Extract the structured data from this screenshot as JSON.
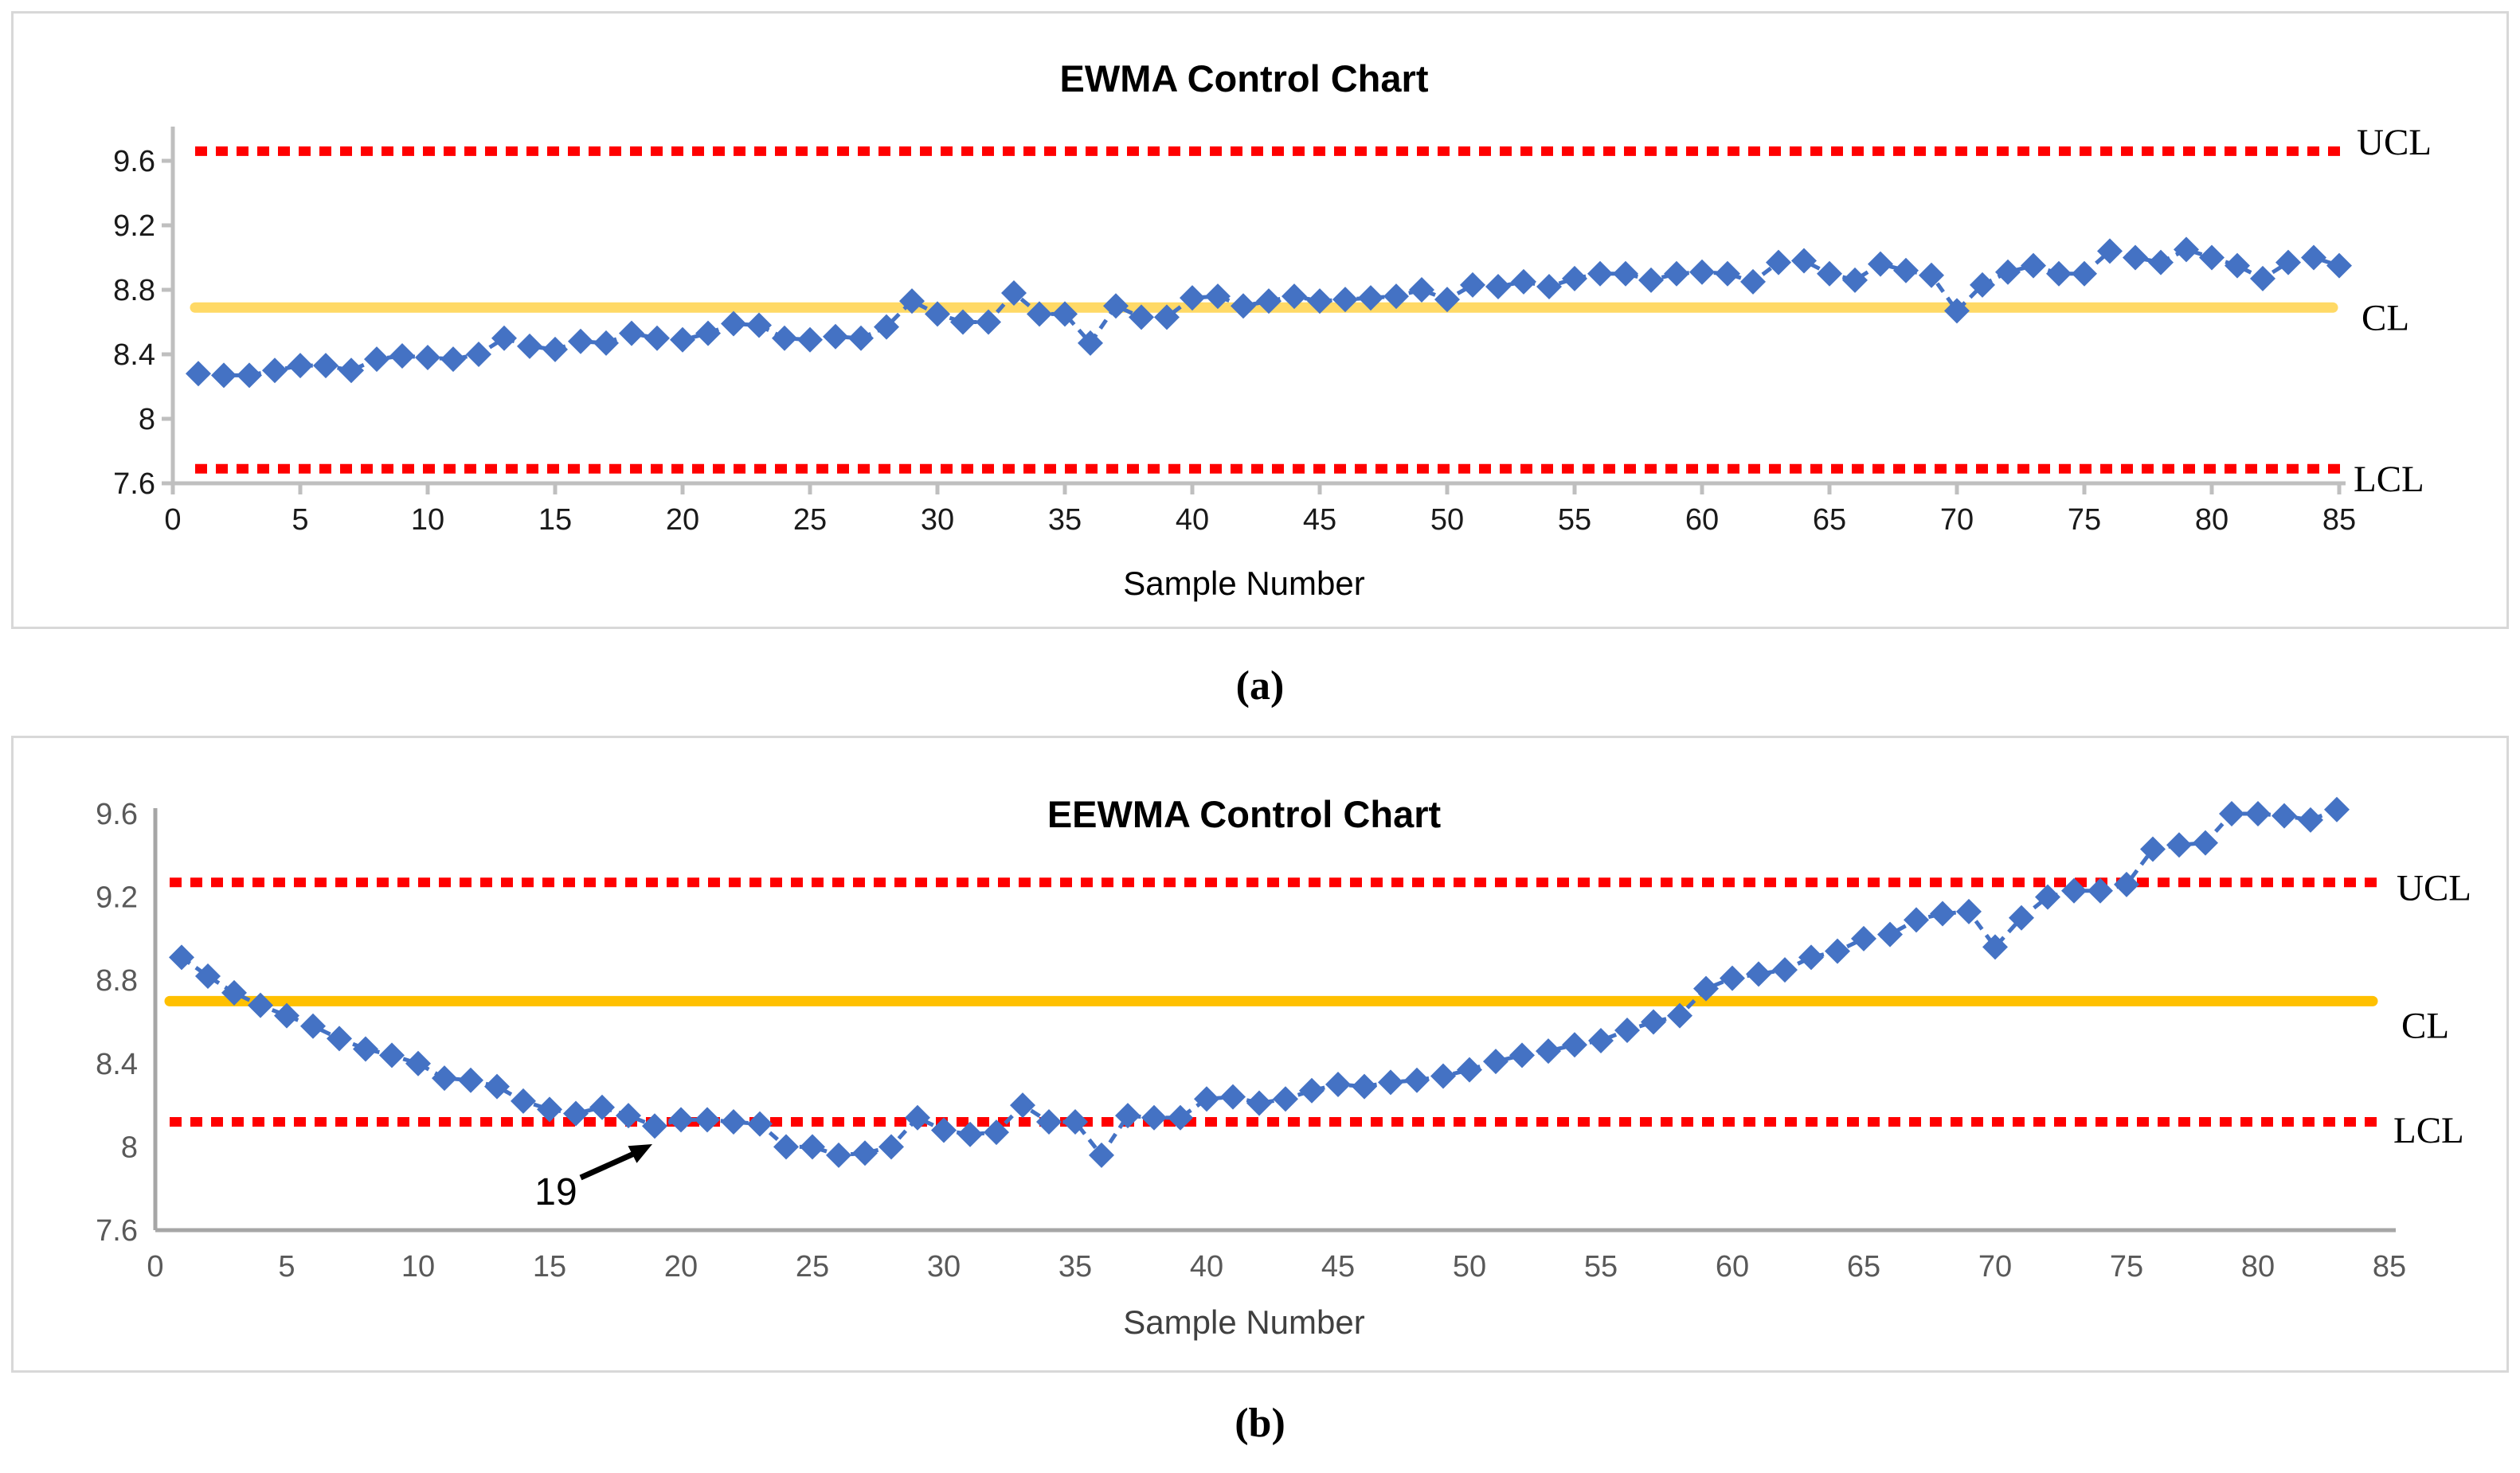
{
  "figure": {
    "caption_a": "(a)",
    "caption_b": "(b)"
  },
  "chart_data": [
    {
      "id": "ewma",
      "type": "line",
      "title": "EWMA Control Chart",
      "xlabel": "Sample Number",
      "marker": "diamond",
      "grid": false,
      "legend_position": "none",
      "ylim": [
        7.6,
        9.84
      ],
      "xlim": [
        0,
        85
      ],
      "yticks": [
        "9.6",
        "9.2",
        "8.8",
        "8.4",
        "8",
        "7.6"
      ],
      "ytick_values": [
        9.6,
        9.2,
        8.8,
        8.4,
        8.0,
        7.6
      ],
      "xticks": [
        0,
        5,
        10,
        15,
        20,
        25,
        30,
        35,
        40,
        45,
        50,
        55,
        60,
        65,
        70,
        75,
        80,
        85
      ],
      "limits": {
        "ucl": 9.66,
        "cl": 8.69,
        "lcl": 7.69
      },
      "limit_labels": {
        "ucl": "UCL",
        "cl": "CL",
        "lcl": "LCL"
      },
      "colors": {
        "series": "#4472C4",
        "limit": "#FF0000",
        "center": "#FFD966",
        "axis": "#BFBFBF",
        "tick_text": "#1a1a1a",
        "title_text": "#000000"
      },
      "x_start": 1,
      "values": [
        8.28,
        8.27,
        8.27,
        8.3,
        8.33,
        8.33,
        8.3,
        8.37,
        8.39,
        8.38,
        8.37,
        8.4,
        8.5,
        8.45,
        8.43,
        8.48,
        8.47,
        8.53,
        8.5,
        8.49,
        8.53,
        8.59,
        8.58,
        8.5,
        8.49,
        8.51,
        8.5,
        8.57,
        8.73,
        8.65,
        8.6,
        8.6,
        8.78,
        8.65,
        8.65,
        8.47,
        8.7,
        8.63,
        8.63,
        8.75,
        8.76,
        8.7,
        8.73,
        8.76,
        8.73,
        8.74,
        8.75,
        8.76,
        8.8,
        8.74,
        8.83,
        8.82,
        8.85,
        8.82,
        8.87,
        8.9,
        8.9,
        8.86,
        8.9,
        8.91,
        8.9,
        8.85,
        8.97,
        8.98,
        8.9,
        8.86,
        8.96,
        8.92,
        8.89,
        8.67,
        8.83,
        8.91,
        8.95,
        8.9,
        8.9,
        9.04,
        9.0,
        8.97,
        9.05,
        9.0,
        8.95,
        8.87,
        8.97,
        9.0,
        8.95
      ]
    },
    {
      "id": "eewma",
      "type": "line",
      "title": "EEWMA Control Chart",
      "xlabel": "Sample Number",
      "marker": "diamond",
      "grid": false,
      "legend_position": "none",
      "ylim": [
        7.6,
        9.6
      ],
      "xlim": [
        0,
        85
      ],
      "yticks": [
        "9.6",
        "9.2",
        "8.8",
        "8.4",
        "8",
        "7.6"
      ],
      "ytick_values": [
        9.6,
        9.2,
        8.8,
        8.4,
        8.0,
        7.6
      ],
      "xticks": [
        0,
        5,
        10,
        15,
        20,
        25,
        30,
        35,
        40,
        45,
        50,
        55,
        60,
        65,
        70,
        75,
        80,
        85
      ],
      "limits": {
        "ucl": 9.27,
        "cl": 8.7,
        "lcl": 8.12
      },
      "limit_labels": {
        "ucl": "UCL",
        "cl": "CL",
        "lcl": "LCL"
      },
      "colors": {
        "series": "#4472C4",
        "limit": "#FF0000",
        "center": "#FFC000",
        "axis": "#A6A6A6",
        "tick_text": "#595959",
        "title_text": "#000000"
      },
      "x_start": 1,
      "values": [
        8.91,
        8.82,
        8.74,
        8.68,
        8.63,
        8.58,
        8.52,
        8.47,
        8.44,
        8.4,
        8.33,
        8.32,
        8.29,
        8.22,
        8.18,
        8.16,
        8.19,
        8.15,
        8.1,
        8.13,
        8.13,
        8.12,
        8.11,
        8.0,
        8.0,
        7.96,
        7.97,
        8.0,
        8.14,
        8.08,
        8.06,
        8.07,
        8.2,
        8.12,
        8.12,
        7.96,
        8.15,
        8.14,
        8.14,
        8.23,
        8.24,
        8.21,
        8.23,
        8.27,
        8.3,
        8.29,
        8.31,
        8.32,
        8.34,
        8.37,
        8.41,
        8.44,
        8.46,
        8.49,
        8.51,
        8.56,
        8.6,
        8.63,
        8.76,
        8.81,
        8.83,
        8.85,
        8.91,
        8.94,
        9.0,
        9.02,
        9.09,
        9.12,
        9.13,
        8.96,
        9.1,
        9.2,
        9.23,
        9.23,
        9.26,
        9.43,
        9.45,
        9.46,
        9.6,
        9.6,
        9.59,
        9.57,
        9.62
      ],
      "annotation": {
        "text": "19",
        "points_to_sample": 19
      }
    }
  ]
}
